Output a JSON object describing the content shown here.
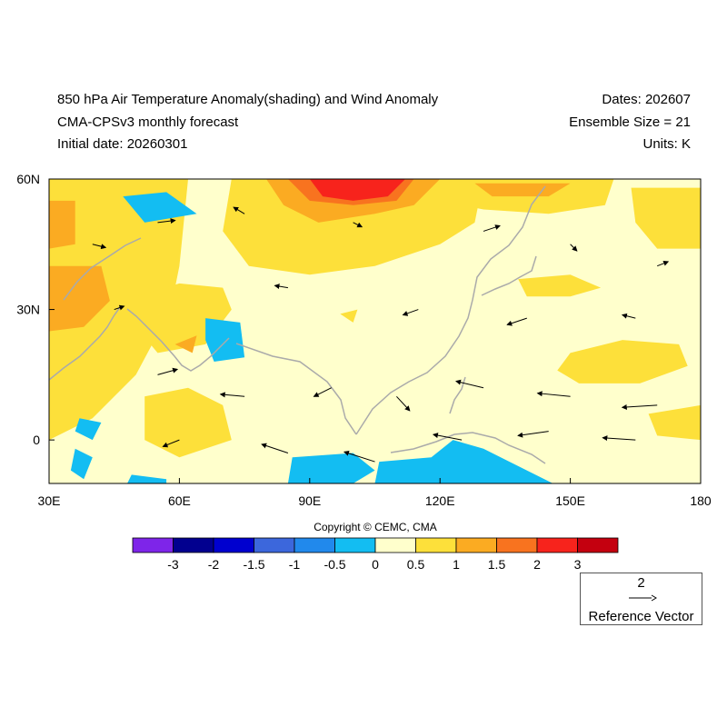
{
  "header": {
    "title": "850 hPa Air Temperature Anomaly(shading) and Wind Anomaly",
    "subtitle": "CMA-CPSv3 monthly forecast",
    "initial_date": "Initial date: 20260301",
    "dates": "Dates: 202607",
    "ensemble": "Ensemble Size = 21",
    "units": "Units: K"
  },
  "map": {
    "region": {
      "lon_min": 30,
      "lon_max": 180,
      "lat_min": -10,
      "lat_max": 60
    },
    "lon_ticks": [
      {
        "value": 30,
        "label": "30E"
      },
      {
        "value": 60,
        "label": "60E"
      },
      {
        "value": 90,
        "label": "90E"
      },
      {
        "value": 120,
        "label": "120E"
      },
      {
        "value": 150,
        "label": "150E"
      },
      {
        "value": 180,
        "label": "180"
      }
    ],
    "lat_ticks": [
      {
        "value": 60,
        "label": "60N"
      },
      {
        "value": 30,
        "label": "30N"
      },
      {
        "value": 0,
        "label": "0"
      }
    ],
    "background_color": "#ffffcc",
    "coastline_color": "#aaaaaa",
    "anomaly_regions": [
      {
        "level": "0.5-1",
        "color": "#fde03a",
        "polygon": [
          [
            30,
            60
          ],
          [
            62,
            60
          ],
          [
            60,
            40
          ],
          [
            58,
            30
          ],
          [
            50,
            15
          ],
          [
            40,
            5
          ],
          [
            30,
            0
          ]
        ]
      },
      {
        "level": "0.5-1",
        "color": "#fde03a",
        "polygon": [
          [
            72,
            60
          ],
          [
            130,
            60
          ],
          [
            128,
            50
          ],
          [
            120,
            45
          ],
          [
            105,
            40
          ],
          [
            90,
            38
          ],
          [
            76,
            40
          ],
          [
            70,
            48
          ]
        ]
      },
      {
        "level": "0.5-1",
        "color": "#fde03a",
        "polygon": [
          [
            118,
            60
          ],
          [
            160,
            60
          ],
          [
            158,
            54
          ],
          [
            145,
            52
          ],
          [
            130,
            53
          ],
          [
            120,
            55
          ]
        ]
      },
      {
        "level": "0.5-1",
        "color": "#fde03a",
        "polygon": [
          [
            164,
            58
          ],
          [
            180,
            58
          ],
          [
            180,
            44
          ],
          [
            170,
            44
          ],
          [
            165,
            50
          ]
        ]
      },
      {
        "level": "0.5-1",
        "color": "#fde03a",
        "polygon": [
          [
            50,
            33
          ],
          [
            60,
            36
          ],
          [
            70,
            35
          ],
          [
            72,
            30
          ],
          [
            66,
            22
          ],
          [
            55,
            20
          ],
          [
            50,
            26
          ]
        ]
      },
      {
        "level": "0.5-1",
        "color": "#fde03a",
        "polygon": [
          [
            52,
            10
          ],
          [
            62,
            12
          ],
          [
            70,
            8
          ],
          [
            72,
            0
          ],
          [
            60,
            -4
          ],
          [
            52,
            0
          ]
        ]
      },
      {
        "level": "0.5-1",
        "color": "#fde03a",
        "polygon": [
          [
            97,
            29
          ],
          [
            101,
            30
          ],
          [
            100,
            27
          ]
        ]
      },
      {
        "level": "0.5-1",
        "color": "#fde03a",
        "polygon": [
          [
            138,
            37
          ],
          [
            150,
            38
          ],
          [
            157,
            35
          ],
          [
            150,
            33
          ],
          [
            140,
            33
          ]
        ]
      },
      {
        "level": "0.5-1",
        "color": "#fde03a",
        "polygon": [
          [
            150,
            20
          ],
          [
            162,
            23
          ],
          [
            175,
            22
          ],
          [
            177,
            17
          ],
          [
            166,
            13
          ],
          [
            152,
            13
          ],
          [
            147,
            16
          ]
        ]
      },
      {
        "level": "0.5-1",
        "color": "#fde03a",
        "polygon": [
          [
            168,
            6
          ],
          [
            180,
            8
          ],
          [
            180,
            0
          ],
          [
            170,
            1
          ]
        ]
      },
      {
        "level": "1-1.5",
        "color": "#fbab22",
        "polygon": [
          [
            30,
            55
          ],
          [
            36,
            55
          ],
          [
            36,
            45
          ],
          [
            30,
            44
          ]
        ]
      },
      {
        "level": "1-1.5",
        "color": "#fbab22",
        "polygon": [
          [
            30,
            40
          ],
          [
            42,
            40
          ],
          [
            44,
            32
          ],
          [
            38,
            26
          ],
          [
            30,
            25
          ]
        ]
      },
      {
        "level": "1-1.5",
        "color": "#fbab22",
        "polygon": [
          [
            80,
            60
          ],
          [
            120,
            60
          ],
          [
            114,
            54
          ],
          [
            105,
            52
          ],
          [
            92,
            50
          ],
          [
            84,
            54
          ]
        ]
      },
      {
        "level": "1-1.5",
        "color": "#fbab22",
        "polygon": [
          [
            128,
            59
          ],
          [
            150,
            59
          ],
          [
            145,
            56
          ],
          [
            132,
            56
          ]
        ]
      },
      {
        "level": "1-1.5",
        "color": "#fbab22",
        "polygon": [
          [
            59,
            22
          ],
          [
            64,
            24
          ],
          [
            63,
            20
          ]
        ]
      },
      {
        "level": "1.5-2",
        "color": "#f8731f",
        "polygon": [
          [
            85,
            60
          ],
          [
            114,
            60
          ],
          [
            110,
            55
          ],
          [
            100,
            54
          ],
          [
            90,
            55
          ]
        ]
      },
      {
        "level": "2-2.5",
        "color": "#f7231c",
        "polygon": [
          [
            90,
            60
          ],
          [
            112,
            60
          ],
          [
            108,
            56
          ],
          [
            100,
            55
          ],
          [
            93,
            56
          ]
        ]
      },
      {
        "level": "-0.5-0",
        "color": "#13bdf2",
        "polygon": [
          [
            47,
            56
          ],
          [
            57,
            57
          ],
          [
            64,
            52
          ],
          [
            52,
            50
          ]
        ]
      },
      {
        "level": "-0.5-0",
        "color": "#13bdf2",
        "polygon": [
          [
            66,
            28
          ],
          [
            74,
            27
          ],
          [
            75,
            19
          ],
          [
            68,
            18
          ],
          [
            66,
            23
          ]
        ]
      },
      {
        "level": "-0.5-0",
        "color": "#13bdf2",
        "polygon": [
          [
            37,
            5
          ],
          [
            42,
            4
          ],
          [
            40,
            0
          ],
          [
            36,
            2
          ]
        ]
      },
      {
        "level": "-0.5-0",
        "color": "#13bdf2",
        "polygon": [
          [
            36,
            -2
          ],
          [
            40,
            -4
          ],
          [
            38,
            -9
          ],
          [
            35,
            -7
          ]
        ]
      },
      {
        "level": "-0.5-0",
        "color": "#13bdf2",
        "polygon": [
          [
            49,
            -8
          ],
          [
            57,
            -9
          ],
          [
            57,
            -10
          ],
          [
            48,
            -10
          ]
        ]
      },
      {
        "level": "-0.5-0",
        "color": "#13bdf2",
        "polygon": [
          [
            86,
            -4
          ],
          [
            100,
            -3
          ],
          [
            105,
            -7
          ],
          [
            100,
            -10
          ],
          [
            85,
            -10
          ]
        ]
      },
      {
        "level": "-0.5-0",
        "color": "#13bdf2",
        "polygon": [
          [
            106,
            -5
          ],
          [
            118,
            -4
          ],
          [
            123,
            0
          ],
          [
            130,
            -2
          ],
          [
            138,
            -6
          ],
          [
            146,
            -10
          ],
          [
            105,
            -10
          ]
        ]
      }
    ],
    "wind_vectors": [
      {
        "lon": 40,
        "lat": 45,
        "u": 1.2,
        "v": -0.3
      },
      {
        "lon": 55,
        "lat": 50,
        "u": 1.6,
        "v": 0.2
      },
      {
        "lon": 75,
        "lat": 52,
        "u": -1.0,
        "v": 0.6
      },
      {
        "lon": 100,
        "lat": 50,
        "u": 0.8,
        "v": -0.4
      },
      {
        "lon": 130,
        "lat": 48,
        "u": 1.5,
        "v": 0.5
      },
      {
        "lon": 150,
        "lat": 45,
        "u": 0.6,
        "v": -0.6
      },
      {
        "lon": 170,
        "lat": 40,
        "u": 1.0,
        "v": 0.4
      },
      {
        "lon": 45,
        "lat": 30,
        "u": 0.9,
        "v": 0.3
      },
      {
        "lon": 85,
        "lat": 35,
        "u": -1.2,
        "v": 0.2
      },
      {
        "lon": 115,
        "lat": 30,
        "u": -1.4,
        "v": -0.5
      },
      {
        "lon": 140,
        "lat": 28,
        "u": -1.8,
        "v": -0.6
      },
      {
        "lon": 165,
        "lat": 28,
        "u": -1.2,
        "v": 0.3
      },
      {
        "lon": 55,
        "lat": 15,
        "u": 1.8,
        "v": 0.5
      },
      {
        "lon": 75,
        "lat": 10,
        "u": -2.2,
        "v": 0.2
      },
      {
        "lon": 95,
        "lat": 12,
        "u": -1.6,
        "v": -0.8
      },
      {
        "lon": 110,
        "lat": 10,
        "u": 1.2,
        "v": -1.3
      },
      {
        "lon": 130,
        "lat": 12,
        "u": -2.5,
        "v": 0.6
      },
      {
        "lon": 150,
        "lat": 10,
        "u": -3.0,
        "v": 0.3
      },
      {
        "lon": 170,
        "lat": 8,
        "u": -3.2,
        "v": -0.2
      },
      {
        "lon": 60,
        "lat": 0,
        "u": -1.5,
        "v": -0.6
      },
      {
        "lon": 85,
        "lat": -3,
        "u": -2.4,
        "v": 0.8
      },
      {
        "lon": 105,
        "lat": -5,
        "u": -2.8,
        "v": 0.9
      },
      {
        "lon": 125,
        "lat": 0,
        "u": -2.6,
        "v": 0.5
      },
      {
        "lon": 145,
        "lat": 2,
        "u": -2.8,
        "v": -0.4
      },
      {
        "lon": 165,
        "lat": 0,
        "u": -3.0,
        "v": 0.2
      }
    ]
  },
  "colorbar": {
    "colors": [
      "#7e25e9",
      "#02008f",
      "#0000cf",
      "#3c67dc",
      "#2189ec",
      "#13bdf2",
      "#ffffcc",
      "#fde03a",
      "#fbab22",
      "#f8731f",
      "#f7231c",
      "#c4000f"
    ],
    "labels": [
      "-3",
      "-2",
      "-1.5",
      "-1",
      "-0.5",
      "0",
      "0.5",
      "1",
      "1.5",
      "2",
      "3"
    ]
  },
  "copyright": "Copyright © CEMC, CMA",
  "reference_vector": {
    "magnitude": "2",
    "label": "Reference Vector"
  }
}
